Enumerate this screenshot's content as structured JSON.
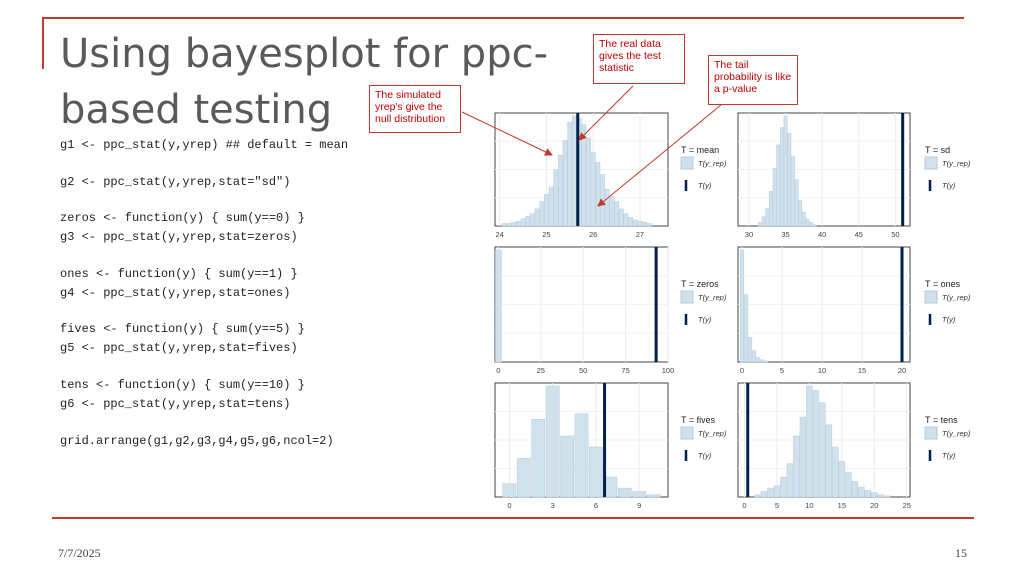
{
  "slide": {
    "title": "Using bayesplot for ppc-based testing",
    "date": "7/7/2025",
    "page_number": "15"
  },
  "code_lines": [
    "g1 <- ppc_stat(y,yrep) ## default = mean",
    "g2 <- ppc_stat(y,yrep,stat=\"sd\")",
    "zeros <- function(y) { sum(y==0) }",
    "g3 <- ppc_stat(y,yrep,stat=zeros)",
    "ones <- function(y) { sum(y==1) }",
    "g4 <- ppc_stat(y,yrep,stat=ones)",
    "fives <- function(y) { sum(y==5) }",
    "g5 <- ppc_stat(y,yrep,stat=fives)",
    "tens <- function(y) { sum(y==10) }",
    "g6 <- ppc_stat(y,yrep,stat=tens)",
    "grid.arrange(g1,g2,g3,g4,g5,g6,ncol=2)"
  ],
  "callouts": {
    "real_data": "The real data gives the test statistic",
    "tail": "The tail probability is like a p-value",
    "simulated": "The simulated yrep's give the null distribution"
  },
  "colors": {
    "accent": "#c0392b",
    "callout_text": "#c00000",
    "hist_fill": "#d1e1ec",
    "hist_stroke": "#b3cde0",
    "observed_line": "#011f4b"
  },
  "legend": {
    "rep_label": "T(y_rep)",
    "obs_label": "T(y)"
  },
  "chart_data": [
    {
      "type": "bar",
      "stat": "mean",
      "legend_title": "T = mean",
      "xlim": [
        23.9,
        27.6
      ],
      "xticks": [
        24,
        25,
        26,
        27
      ],
      "x": [
        24.1,
        24.2,
        24.3,
        24.4,
        24.5,
        24.6,
        24.7,
        24.8,
        24.9,
        25.0,
        25.1,
        25.2,
        25.3,
        25.4,
        25.5,
        25.6,
        25.7,
        25.8,
        25.9,
        26.0,
        26.1,
        26.2,
        26.3,
        26.4,
        26.5,
        26.6,
        26.7,
        26.8,
        26.9,
        27.0,
        27.1,
        27.2
      ],
      "values": [
        2,
        2,
        3,
        4,
        6,
        8,
        10,
        14,
        20,
        26,
        32,
        46,
        58,
        70,
        85,
        90,
        88,
        83,
        72,
        60,
        52,
        42,
        30,
        24,
        20,
        14,
        10,
        7,
        5,
        4,
        3,
        2
      ],
      "observed": 25.67
    },
    {
      "type": "bar",
      "stat": "sd",
      "legend_title": "T = sd",
      "xlim": [
        28.5,
        52
      ],
      "xticks": [
        30,
        35,
        40,
        45,
        50
      ],
      "x": [
        31.5,
        32,
        32.5,
        33,
        33.5,
        34,
        34.5,
        35,
        35.5,
        36,
        36.5,
        37,
        37.5,
        38,
        38.5,
        39
      ],
      "values": [
        3,
        8,
        15,
        30,
        50,
        70,
        85,
        95,
        80,
        60,
        40,
        22,
        12,
        6,
        3,
        1
      ],
      "observed": 51
    },
    {
      "type": "bar",
      "stat": "zeros",
      "legend_title": "T = zeros",
      "xlim": [
        -2,
        100
      ],
      "xticks": [
        0,
        25,
        50,
        75,
        100
      ],
      "x": [
        0
      ],
      "values": [
        100
      ],
      "observed": 93
    },
    {
      "type": "bar",
      "stat": "ones",
      "legend_title": "T = ones",
      "xlim": [
        -0.5,
        21
      ],
      "xticks": [
        0,
        5,
        10,
        15,
        20
      ],
      "x": [
        0,
        0.5,
        1,
        1.5,
        2,
        2.5,
        3
      ],
      "values": [
        100,
        60,
        22,
        10,
        4,
        2,
        1
      ],
      "observed": 20
    },
    {
      "type": "bar",
      "stat": "fives",
      "legend_title": "T = fives",
      "xlim": [
        -1,
        11
      ],
      "xticks": [
        0,
        3,
        6,
        9
      ],
      "x": [
        0,
        1,
        2,
        3,
        4,
        5,
        6,
        7,
        8,
        9,
        10
      ],
      "values": [
        12,
        35,
        70,
        100,
        55,
        75,
        45,
        18,
        8,
        5,
        2
      ],
      "observed": 6.6
    },
    {
      "type": "bar",
      "stat": "tens",
      "legend_title": "T = tens",
      "xlim": [
        -1,
        25.5
      ],
      "xticks": [
        0,
        5,
        10,
        15,
        20,
        25
      ],
      "x": [
        2,
        3,
        4,
        5,
        6,
        7,
        8,
        9,
        10,
        11,
        12,
        13,
        14,
        15,
        16,
        17,
        18,
        19,
        20,
        21,
        22
      ],
      "values": [
        2,
        5,
        8,
        10,
        18,
        30,
        55,
        72,
        100,
        96,
        85,
        65,
        45,
        32,
        22,
        14,
        9,
        6,
        4,
        2,
        1
      ],
      "observed": 0.5
    }
  ]
}
